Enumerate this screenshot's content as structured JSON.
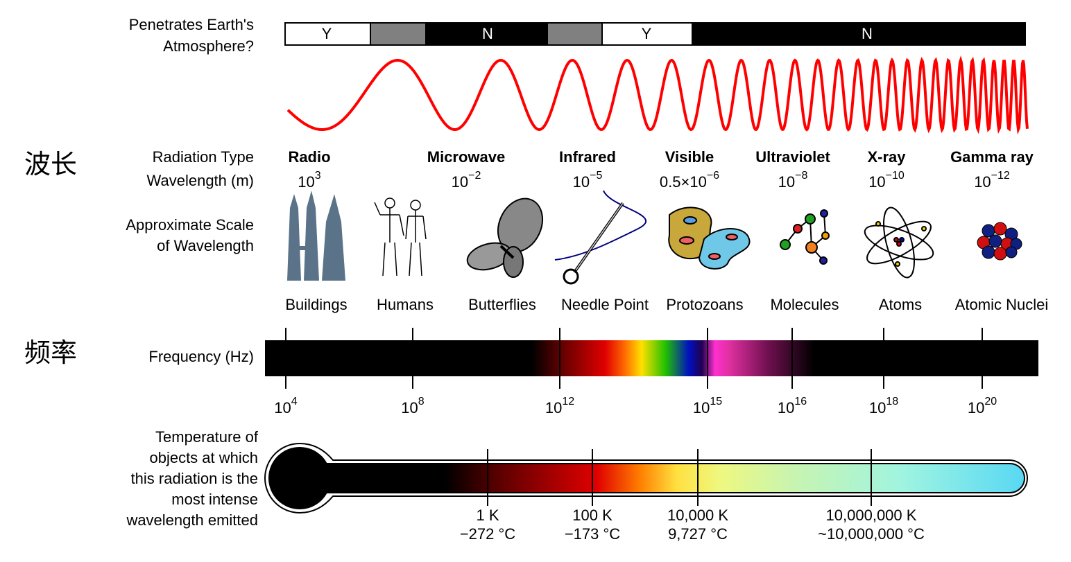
{
  "side_labels": {
    "wavelength": "波长",
    "frequency": "频率"
  },
  "atmosphere": {
    "label_lines": [
      "Penetrates Earth's",
      "Atmosphere?"
    ],
    "segments": [
      "Y",
      "N",
      "Y",
      "N"
    ]
  },
  "row_labels": {
    "radiation_type": "Radiation Type",
    "wavelength": "Wavelength (m)",
    "scale_lines": [
      "Approximate Scale",
      "of Wavelength"
    ],
    "frequency": "Frequency (Hz)",
    "temperature_lines": [
      "Temperature of",
      "objects at which",
      "this radiation is the",
      "most intense",
      "wavelength emitted"
    ]
  },
  "radiation": [
    {
      "name": "Radio",
      "wavelength": {
        "base": "10",
        "exp": "3"
      }
    },
    {
      "name": "Microwave",
      "wavelength": {
        "base": "10",
        "exp": "−2"
      }
    },
    {
      "name": "Infrared",
      "wavelength": {
        "base": "10",
        "exp": "−5"
      }
    },
    {
      "name": "Visible",
      "wavelength": {
        "base": "0.5×10",
        "exp": "−6"
      }
    },
    {
      "name": "Ultraviolet",
      "wavelength": {
        "base": "10",
        "exp": "−8"
      }
    },
    {
      "name": "X-ray",
      "wavelength": {
        "base": "10",
        "exp": "−10"
      }
    },
    {
      "name": "Gamma ray",
      "wavelength": {
        "base": "10",
        "exp": "−12"
      }
    }
  ],
  "scale_objects": [
    "Buildings",
    "Humans",
    "Butterflies",
    "Needle Point",
    "Protozoans",
    "Molecules",
    "Atoms",
    "Atomic Nuclei"
  ],
  "frequency_ticks": [
    {
      "base": "10",
      "exp": "4"
    },
    {
      "base": "10",
      "exp": "8"
    },
    {
      "base": "10",
      "exp": "12"
    },
    {
      "base": "10",
      "exp": "15"
    },
    {
      "base": "10",
      "exp": "16"
    },
    {
      "base": "10",
      "exp": "18"
    },
    {
      "base": "10",
      "exp": "20"
    }
  ],
  "temperatures": [
    {
      "kelvin": "1 K",
      "celsius": "−272 °C"
    },
    {
      "kelvin": "100 K",
      "celsius": "−173 °C"
    },
    {
      "kelvin": "10,000 K",
      "celsius": "9,727 °C"
    },
    {
      "kelvin": "10,000,000 K",
      "celsius": "~10,000,000 °C"
    }
  ]
}
